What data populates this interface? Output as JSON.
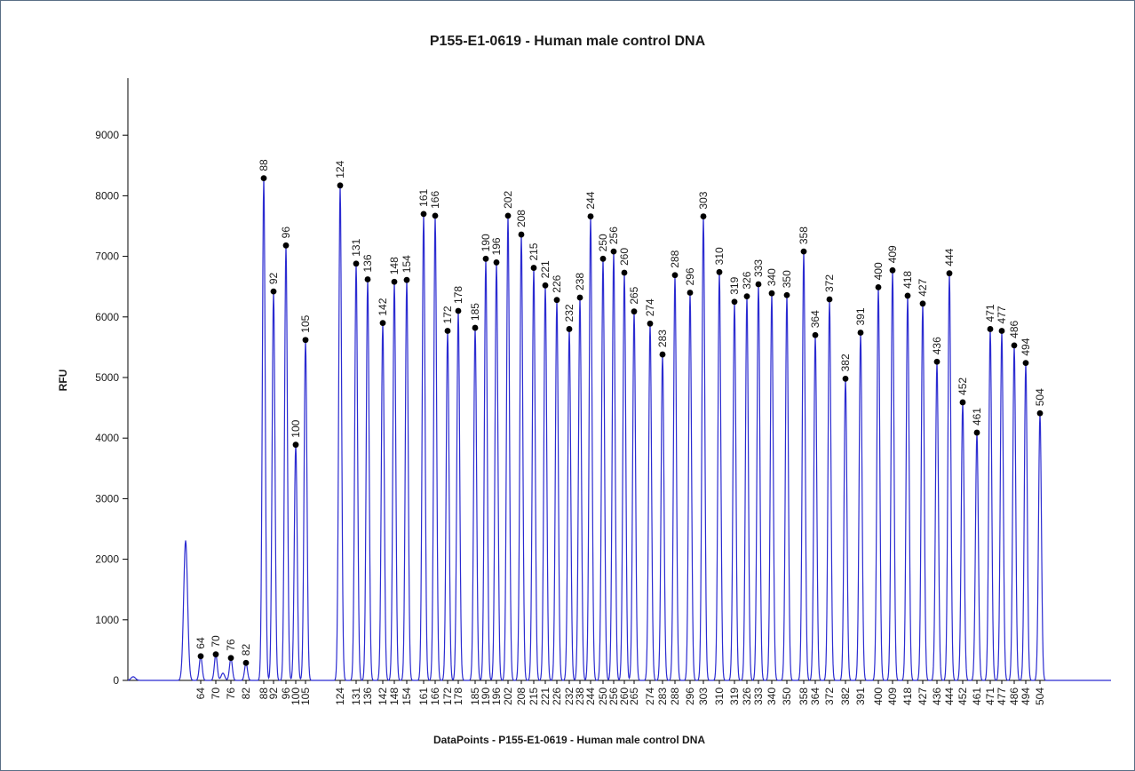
{
  "chart_data": {
    "type": "line",
    "title": "P155-E1-0619 - Human male control DNA",
    "xlabel": "DataPoints - P155-E1-0619 - Human male control DNA",
    "ylabel": "RFU",
    "ylim": [
      0,
      10000
    ],
    "yticks": [
      0,
      1000,
      2000,
      3000,
      4000,
      5000,
      6000,
      7000,
      8000,
      9000
    ],
    "grid": false,
    "legend": "none",
    "series_color": "#2b2bd1",
    "marker_color": "#000000",
    "unlabeled_peak": {
      "height": 2310
    },
    "peaks": [
      {
        "size": "64",
        "rfu": 400
      },
      {
        "size": "70",
        "rfu": 430
      },
      {
        "size": "76",
        "rfu": 370
      },
      {
        "size": "82",
        "rfu": 290
      },
      {
        "size": "88",
        "rfu": 8290
      },
      {
        "size": "92",
        "rfu": 6420
      },
      {
        "size": "96",
        "rfu": 7180
      },
      {
        "size": "100",
        "rfu": 3890
      },
      {
        "size": "105",
        "rfu": 5620
      },
      {
        "size": "124",
        "rfu": 8170
      },
      {
        "size": "131",
        "rfu": 6880
      },
      {
        "size": "136",
        "rfu": 6620
      },
      {
        "size": "142",
        "rfu": 5900
      },
      {
        "size": "148",
        "rfu": 6580
      },
      {
        "size": "154",
        "rfu": 6610
      },
      {
        "size": "161",
        "rfu": 7700
      },
      {
        "size": "166",
        "rfu": 7670
      },
      {
        "size": "172",
        "rfu": 5770
      },
      {
        "size": "178",
        "rfu": 6100
      },
      {
        "size": "185",
        "rfu": 5820
      },
      {
        "size": "190",
        "rfu": 6960
      },
      {
        "size": "196",
        "rfu": 6900
      },
      {
        "size": "202",
        "rfu": 7670
      },
      {
        "size": "208",
        "rfu": 7360
      },
      {
        "size": "215",
        "rfu": 6810
      },
      {
        "size": "221",
        "rfu": 6520
      },
      {
        "size": "226",
        "rfu": 6280
      },
      {
        "size": "232",
        "rfu": 5800
      },
      {
        "size": "238",
        "rfu": 6320
      },
      {
        "size": "244",
        "rfu": 7660
      },
      {
        "size": "250",
        "rfu": 6960
      },
      {
        "size": "256",
        "rfu": 7080
      },
      {
        "size": "260",
        "rfu": 6730
      },
      {
        "size": "265",
        "rfu": 6090
      },
      {
        "size": "274",
        "rfu": 5890
      },
      {
        "size": "283",
        "rfu": 5380
      },
      {
        "size": "288",
        "rfu": 6690
      },
      {
        "size": "296",
        "rfu": 6400
      },
      {
        "size": "303",
        "rfu": 7660
      },
      {
        "size": "310",
        "rfu": 6740
      },
      {
        "size": "319",
        "rfu": 6250
      },
      {
        "size": "326",
        "rfu": 6340
      },
      {
        "size": "333",
        "rfu": 6540
      },
      {
        "size": "340",
        "rfu": 6390
      },
      {
        "size": "350",
        "rfu": 6360
      },
      {
        "size": "358",
        "rfu": 7080
      },
      {
        "size": "364",
        "rfu": 5700
      },
      {
        "size": "372",
        "rfu": 6290
      },
      {
        "size": "382",
        "rfu": 4980
      },
      {
        "size": "391",
        "rfu": 5740
      },
      {
        "size": "400",
        "rfu": 6490
      },
      {
        "size": "409",
        "rfu": 6770
      },
      {
        "size": "418",
        "rfu": 6350
      },
      {
        "size": "427",
        "rfu": 6220
      },
      {
        "size": "436",
        "rfu": 5260
      },
      {
        "size": "444",
        "rfu": 6720
      },
      {
        "size": "452",
        "rfu": 4590
      },
      {
        "size": "461",
        "rfu": 4090
      },
      {
        "size": "471",
        "rfu": 5800
      },
      {
        "size": "477",
        "rfu": 5770
      },
      {
        "size": "486",
        "rfu": 5530
      },
      {
        "size": "494",
        "rfu": 5240
      },
      {
        "size": "504",
        "rfu": 4410
      }
    ]
  }
}
